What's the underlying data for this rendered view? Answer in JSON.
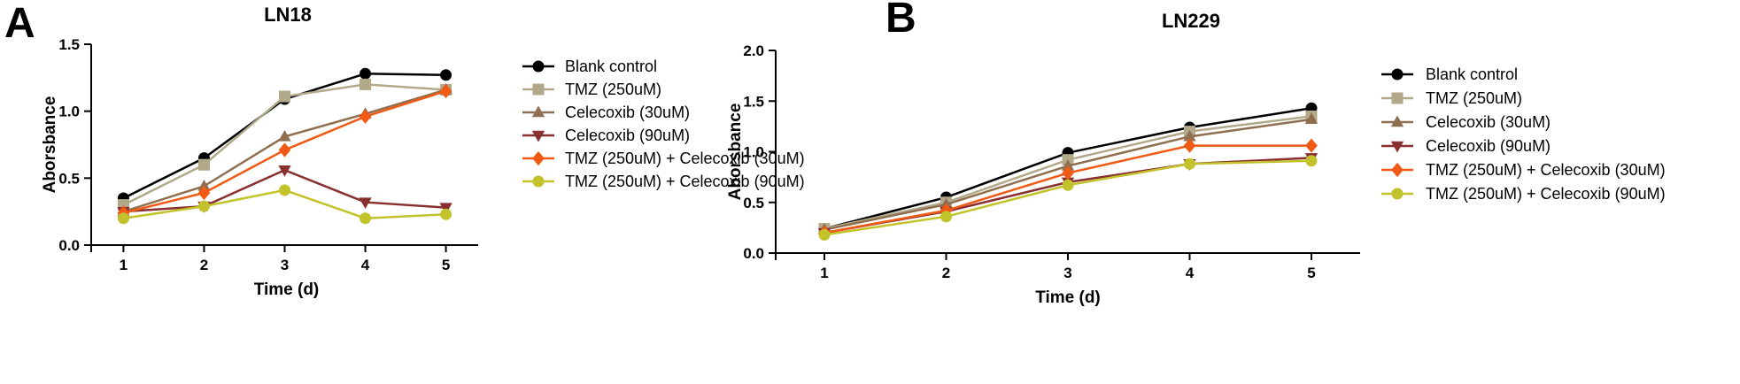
{
  "chart_data": [
    {
      "type": "line",
      "panel_letter": "A",
      "title": "LN18",
      "xlabel": "Time (d)",
      "ylabel": "Aborsbance",
      "x": [
        1,
        2,
        3,
        4,
        5
      ],
      "xticks": [
        "1",
        "2",
        "3",
        "4",
        "5"
      ],
      "xlim": [
        0.6,
        5.4
      ],
      "ylim": [
        0,
        1.5
      ],
      "yticks": [
        "0.0",
        "0.5",
        "1.0",
        "1.5"
      ],
      "ytick_values": [
        0,
        0.5,
        1.0,
        1.5
      ],
      "grid": false,
      "legend_position": "right",
      "series": [
        {
          "name": "Blank control",
          "color": "#000000",
          "marker": "circle",
          "values": [
            0.35,
            0.65,
            1.09,
            1.28,
            1.27
          ]
        },
        {
          "name": "TMZ (250uM)",
          "color": "#b2a98a",
          "marker": "square",
          "values": [
            0.3,
            0.6,
            1.11,
            1.2,
            1.16
          ]
        },
        {
          "name": "Celecoxib (30uM)",
          "color": "#8f6f4f",
          "marker": "triangle-up",
          "values": [
            0.25,
            0.44,
            0.81,
            0.98,
            1.16
          ]
        },
        {
          "name": "Celecoxib (90uM)",
          "color": "#8a2f2f",
          "marker": "triangle-down",
          "values": [
            0.25,
            0.29,
            0.56,
            0.32,
            0.28
          ]
        },
        {
          "name": "TMZ (250uM) + Celecoxib (30uM)",
          "color": "#f05a14",
          "marker": "diamond",
          "values": [
            0.24,
            0.39,
            0.71,
            0.96,
            1.15
          ]
        },
        {
          "name": "TMZ (250uM) + Celecoxib (90uM)",
          "color": "#c2c22a",
          "marker": "circle",
          "values": [
            0.2,
            0.29,
            0.41,
            0.2,
            0.23
          ]
        }
      ]
    },
    {
      "type": "line",
      "panel_letter": "B",
      "title": "LN229",
      "xlabel": "Time (d)",
      "ylabel": "Aborsbance",
      "x": [
        1,
        2,
        3,
        4,
        5
      ],
      "xticks": [
        "1",
        "2",
        "3",
        "4",
        "5"
      ],
      "xlim": [
        0.6,
        5.4
      ],
      "ylim": [
        0,
        2.0
      ],
      "yticks": [
        "0.0",
        "0.5",
        "1.0",
        "1.5",
        "2.0"
      ],
      "ytick_values": [
        0,
        0.5,
        1.0,
        1.5,
        2.0
      ],
      "grid": false,
      "legend_position": "right",
      "series": [
        {
          "name": "Blank control",
          "color": "#000000",
          "marker": "circle",
          "values": [
            0.24,
            0.55,
            0.99,
            1.24,
            1.43
          ]
        },
        {
          "name": "TMZ (250uM)",
          "color": "#b2a98a",
          "marker": "square",
          "values": [
            0.24,
            0.5,
            0.92,
            1.2,
            1.35
          ]
        },
        {
          "name": "Celecoxib (30uM)",
          "color": "#8f6f4f",
          "marker": "triangle-up",
          "values": [
            0.23,
            0.48,
            0.86,
            1.15,
            1.32
          ]
        },
        {
          "name": "Celecoxib (90uM)",
          "color": "#8a2f2f",
          "marker": "triangle-down",
          "values": [
            0.2,
            0.41,
            0.7,
            0.88,
            0.94
          ]
        },
        {
          "name": "TMZ (250uM) + Celecoxib (30uM)",
          "color": "#f05a14",
          "marker": "diamond",
          "values": [
            0.2,
            0.42,
            0.79,
            1.06,
            1.06
          ]
        },
        {
          "name": "TMZ (250uM) + Celecoxib (90uM)",
          "color": "#c2c22a",
          "marker": "circle",
          "values": [
            0.18,
            0.36,
            0.67,
            0.88,
            0.91
          ]
        }
      ]
    }
  ]
}
